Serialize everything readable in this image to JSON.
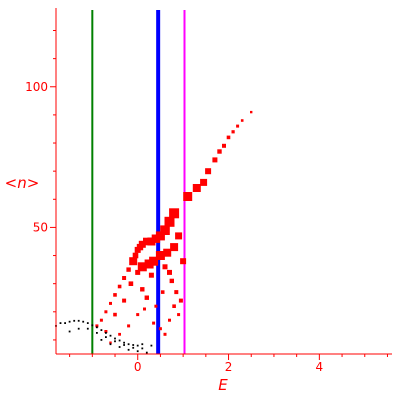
{
  "chart_data": {
    "type": "scatter",
    "title": "",
    "xlabel": "E",
    "ylabel": "<n>",
    "xlim": [
      -1.8,
      5.6
    ],
    "ylim": [
      5,
      128
    ],
    "x_ticks": [
      0,
      2,
      4
    ],
    "x_tick_labels": [
      "0",
      "2",
      "4"
    ],
    "y_ticks": [
      50,
      100
    ],
    "y_tick_labels": [
      "50",
      "100"
    ],
    "grid": false,
    "axes_color": "#ff0000",
    "vertical_lines": [
      {
        "x": -1.0,
        "color": "#008000",
        "width": 2
      },
      {
        "x": 0.45,
        "color": "#0000ff",
        "width": 4
      },
      {
        "x": 1.03,
        "color": "#ff00ff",
        "width": 2
      }
    ],
    "series": [
      {
        "color": "#ff0000",
        "points": [
          {
            "x": -0.9,
            "y": 15,
            "s": 1.5
          },
          {
            "x": -0.8,
            "y": 17,
            "s": 1.5
          },
          {
            "x": -0.7,
            "y": 20,
            "s": 1.5
          },
          {
            "x": -0.6,
            "y": 23,
            "s": 1.5
          },
          {
            "x": -0.5,
            "y": 26,
            "s": 1.8
          },
          {
            "x": -0.4,
            "y": 29,
            "s": 1.8
          },
          {
            "x": -0.3,
            "y": 32,
            "s": 2.0
          },
          {
            "x": -0.2,
            "y": 35,
            "s": 2.2
          },
          {
            "x": -0.1,
            "y": 38,
            "s": 2.5
          },
          {
            "x": -0.05,
            "y": 40,
            "s": 2.8
          },
          {
            "x": 0.0,
            "y": 42,
            "s": 3.0
          },
          {
            "x": 0.05,
            "y": 43,
            "s": 3.2
          },
          {
            "x": 0.1,
            "y": 44,
            "s": 3.5
          },
          {
            "x": 0.2,
            "y": 45,
            "s": 3.8
          },
          {
            "x": 0.3,
            "y": 45,
            "s": 4.0
          },
          {
            "x": 0.4,
            "y": 46,
            "s": 4.2
          },
          {
            "x": 0.5,
            "y": 47,
            "s": 4.5
          },
          {
            "x": 0.6,
            "y": 49,
            "s": 4.8
          },
          {
            "x": 0.7,
            "y": 52,
            "s": 5.0
          },
          {
            "x": 0.8,
            "y": 55,
            "s": 5.0
          },
          {
            "x": 1.1,
            "y": 61,
            "s": 4.5
          },
          {
            "x": 1.3,
            "y": 64,
            "s": 4.0
          },
          {
            "x": 1.45,
            "y": 66,
            "s": 3.5
          },
          {
            "x": 1.55,
            "y": 70,
            "s": 3.0
          },
          {
            "x": 1.7,
            "y": 74,
            "s": 2.5
          },
          {
            "x": 1.8,
            "y": 77,
            "s": 2.2
          },
          {
            "x": 1.9,
            "y": 79,
            "s": 2.0
          },
          {
            "x": 2.0,
            "y": 82,
            "s": 1.8
          },
          {
            "x": 2.1,
            "y": 84,
            "s": 1.6
          },
          {
            "x": 2.2,
            "y": 86,
            "s": 1.5
          },
          {
            "x": 2.3,
            "y": 88,
            "s": 1.3
          },
          {
            "x": 2.5,
            "y": 91,
            "s": 1.2
          },
          {
            "x": -0.1,
            "y": 38,
            "s": 4.0
          },
          {
            "x": 0.1,
            "y": 36,
            "s": 4.5
          },
          {
            "x": 0.25,
            "y": 37,
            "s": 4.5
          },
          {
            "x": 0.35,
            "y": 38,
            "s": 4.5
          },
          {
            "x": 0.5,
            "y": 40,
            "s": 4.5
          },
          {
            "x": 0.65,
            "y": 41,
            "s": 4.0
          },
          {
            "x": 0.8,
            "y": 43,
            "s": 4.0
          },
          {
            "x": 0.9,
            "y": 47,
            "s": 3.5
          },
          {
            "x": -0.7,
            "y": 13,
            "s": 1.5
          },
          {
            "x": -0.5,
            "y": 19,
            "s": 1.8
          },
          {
            "x": -0.3,
            "y": 24,
            "s": 2.0
          },
          {
            "x": -0.15,
            "y": 30,
            "s": 2.3
          },
          {
            "x": 0.0,
            "y": 34,
            "s": 2.5
          },
          {
            "x": 0.1,
            "y": 28,
            "s": 2.2
          },
          {
            "x": 0.2,
            "y": 25,
            "s": 2.2
          },
          {
            "x": 0.3,
            "y": 33,
            "s": 2.5
          },
          {
            "x": 0.6,
            "y": 36,
            "s": 2.5
          },
          {
            "x": 0.7,
            "y": 34,
            "s": 2.5
          },
          {
            "x": 0.75,
            "y": 31,
            "s": 2.2
          },
          {
            "x": 0.85,
            "y": 27,
            "s": 2.0
          },
          {
            "x": 0.95,
            "y": 24,
            "s": 2.0
          },
          {
            "x": 1.0,
            "y": 38,
            "s": 3.0
          },
          {
            "x": 0.8,
            "y": 22,
            "s": 1.8
          },
          {
            "x": -0.6,
            "y": 9,
            "s": 1.2
          },
          {
            "x": -0.4,
            "y": 12,
            "s": 1.4
          },
          {
            "x": -0.2,
            "y": 15,
            "s": 1.5
          },
          {
            "x": 0.0,
            "y": 19,
            "s": 1.5
          },
          {
            "x": 0.15,
            "y": 21,
            "s": 1.5
          },
          {
            "x": 0.35,
            "y": 16,
            "s": 1.5
          },
          {
            "x": 0.5,
            "y": 14,
            "s": 1.5
          },
          {
            "x": 0.6,
            "y": 12,
            "s": 1.5
          },
          {
            "x": 0.7,
            "y": 17,
            "s": 1.5
          },
          {
            "x": 0.9,
            "y": 19,
            "s": 1.5
          },
          {
            "x": 0.4,
            "y": 22,
            "s": 1.5
          },
          {
            "x": 0.55,
            "y": 27,
            "s": 1.8
          }
        ]
      },
      {
        "color": "#000000",
        "points": [
          {
            "x": -1.8,
            "y": 15,
            "s": 0.9
          },
          {
            "x": -1.7,
            "y": 16,
            "s": 0.9
          },
          {
            "x": -1.6,
            "y": 16,
            "s": 0.9
          },
          {
            "x": -1.5,
            "y": 16.5,
            "s": 0.9
          },
          {
            "x": -1.4,
            "y": 16.8,
            "s": 0.9
          },
          {
            "x": -1.3,
            "y": 16.8,
            "s": 0.9
          },
          {
            "x": -1.2,
            "y": 16.5,
            "s": 0.9
          },
          {
            "x": -1.1,
            "y": 16,
            "s": 0.9
          },
          {
            "x": -1.0,
            "y": 15.2,
            "s": 0.9
          },
          {
            "x": -0.9,
            "y": 14.5,
            "s": 0.9
          },
          {
            "x": -0.8,
            "y": 13.5,
            "s": 0.9
          },
          {
            "x": -0.7,
            "y": 12.5,
            "s": 0.9
          },
          {
            "x": -0.6,
            "y": 11.5,
            "s": 0.9
          },
          {
            "x": -0.5,
            "y": 10.5,
            "s": 0.9
          },
          {
            "x": -0.4,
            "y": 9.8,
            "s": 0.9
          },
          {
            "x": -0.3,
            "y": 9,
            "s": 0.9
          },
          {
            "x": -0.2,
            "y": 8.5,
            "s": 0.9
          },
          {
            "x": -0.1,
            "y": 8.2,
            "s": 0.9
          },
          {
            "x": 0.0,
            "y": 8,
            "s": 0.9
          },
          {
            "x": 0.1,
            "y": 8.5,
            "s": 0.9
          },
          {
            "x": -1.5,
            "y": 13,
            "s": 0.9
          },
          {
            "x": -1.3,
            "y": 14,
            "s": 0.9
          },
          {
            "x": -1.1,
            "y": 14,
            "s": 0.9
          },
          {
            "x": -0.9,
            "y": 12.5,
            "s": 0.9
          },
          {
            "x": -0.7,
            "y": 11,
            "s": 0.9
          },
          {
            "x": -0.5,
            "y": 9.5,
            "s": 0.9
          },
          {
            "x": -0.3,
            "y": 8.2,
            "s": 0.9
          },
          {
            "x": -0.1,
            "y": 7.2,
            "s": 0.9
          },
          {
            "x": 0.1,
            "y": 7,
            "s": 0.9
          },
          {
            "x": 0.3,
            "y": 8,
            "s": 0.9
          },
          {
            "x": -0.8,
            "y": 10,
            "s": 0.9
          },
          {
            "x": -0.6,
            "y": 8.5,
            "s": 0.9
          },
          {
            "x": -0.4,
            "y": 7.5,
            "s": 0.9
          },
          {
            "x": -0.2,
            "y": 6.5,
            "s": 0.9
          },
          {
            "x": 0.0,
            "y": 6,
            "s": 0.9
          },
          {
            "x": 0.2,
            "y": 5.5,
            "s": 0.9
          }
        ]
      }
    ]
  }
}
